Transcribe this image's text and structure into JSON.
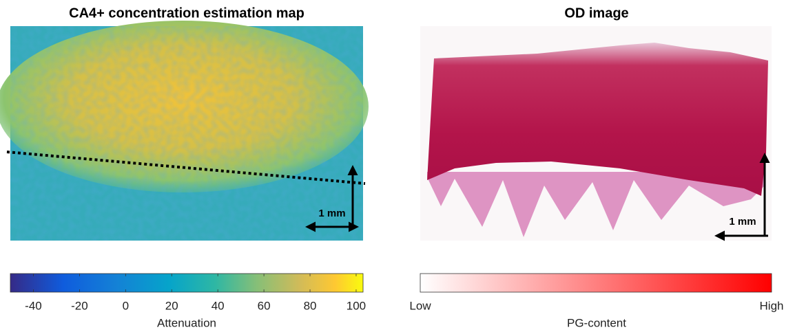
{
  "left_panel": {
    "title": "CA4+ concentration estimation map",
    "scale_bar": "1 mm",
    "colorbar": {
      "label": "Attenuation",
      "lim": [
        -50,
        103
      ],
      "ticks": [
        -40,
        -20,
        0,
        20,
        40,
        60,
        80,
        100
      ]
    }
  },
  "right_panel": {
    "title": "OD image",
    "scale_bar": "1 mm",
    "colorbar": {
      "label": "PG-content",
      "low": "Low",
      "high": "High"
    }
  }
}
